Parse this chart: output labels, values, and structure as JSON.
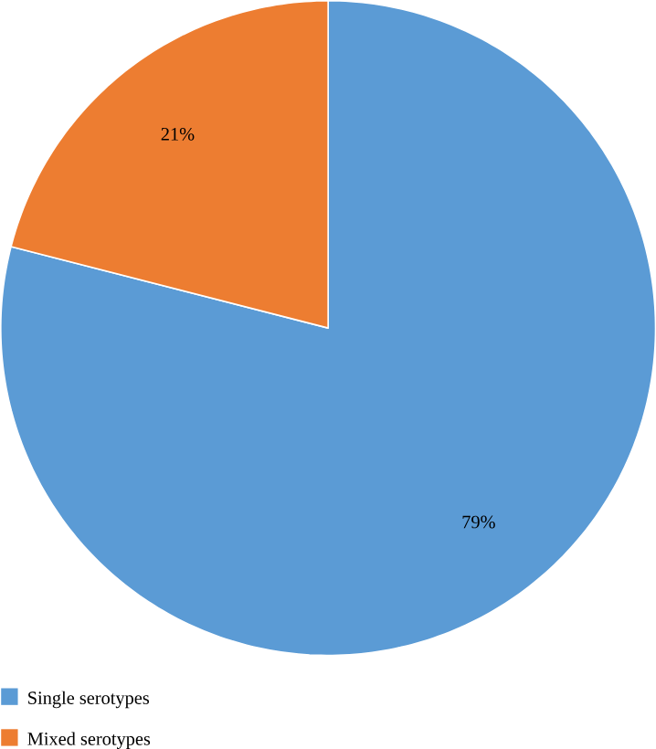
{
  "chart_data": {
    "type": "pie",
    "categories": [
      "Single serotypes",
      "Mixed serotypes"
    ],
    "values": [
      79,
      21
    ],
    "colors": [
      "#5b9bd5",
      "#ed7d31"
    ],
    "value_labels": [
      "79%",
      "21%"
    ],
    "legend": "bottom left"
  }
}
